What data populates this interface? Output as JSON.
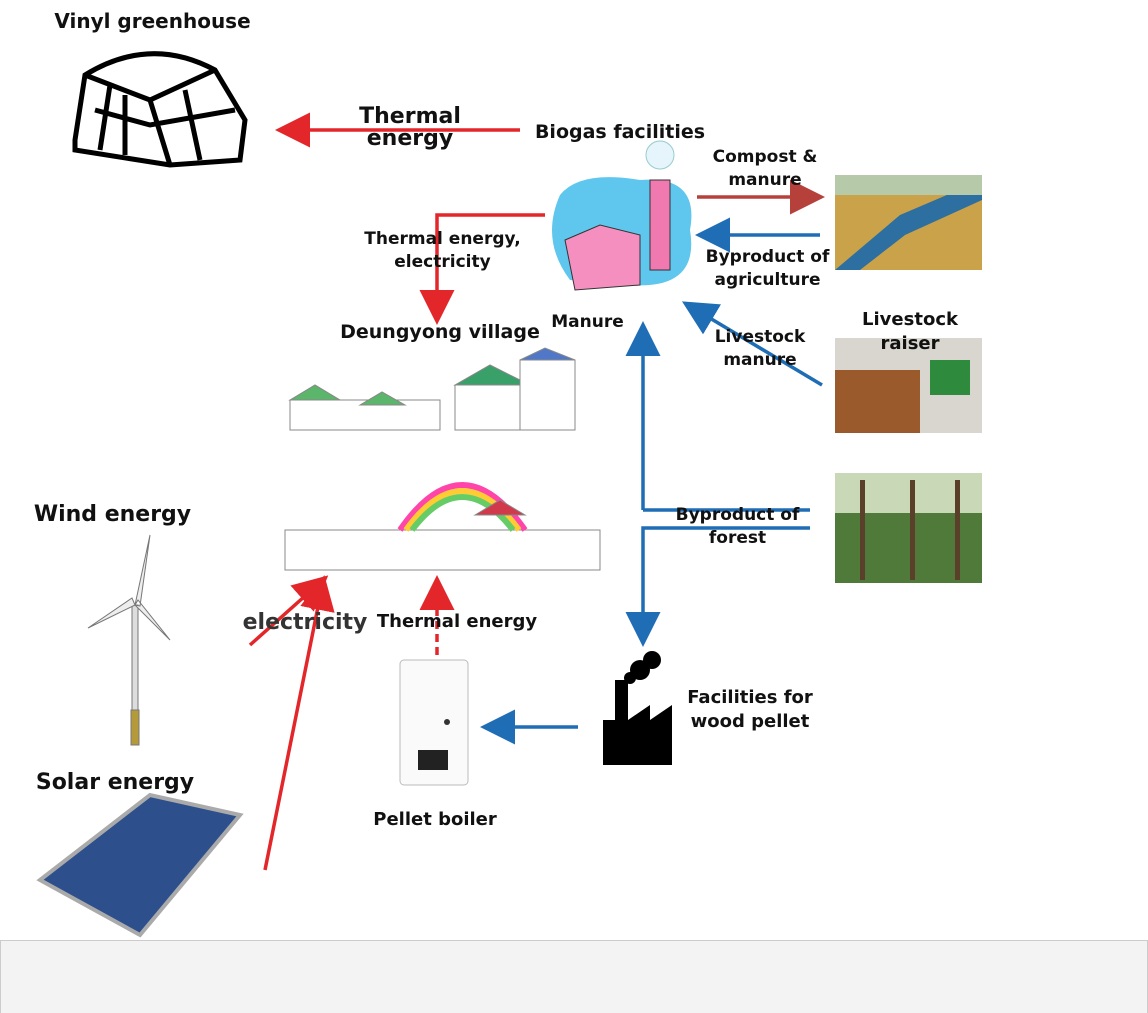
{
  "nodes": [
    {
      "label": "Vinyl greenhouse"
    },
    {
      "label": "Biogas facilities"
    },
    {
      "label": "Deungyong village"
    },
    {
      "label": "Livestock raiser"
    },
    {
      "label": "Wind energy"
    },
    {
      "label": "Solar energy"
    },
    {
      "label": "Facilities for wood pellet"
    },
    {
      "label": "Pellet boiler"
    }
  ],
  "edges": [
    {
      "label": "Thermal energy"
    },
    {
      "label": "Compost & manure"
    },
    {
      "label": "Byproduct of agriculture"
    },
    {
      "label": "Thermal energy, electricity"
    },
    {
      "label": "Manure"
    },
    {
      "label": "Livestock manure"
    },
    {
      "label": "Byproduct of forest"
    },
    {
      "label": "electricity"
    },
    {
      "label": "Thermal energy"
    }
  ]
}
